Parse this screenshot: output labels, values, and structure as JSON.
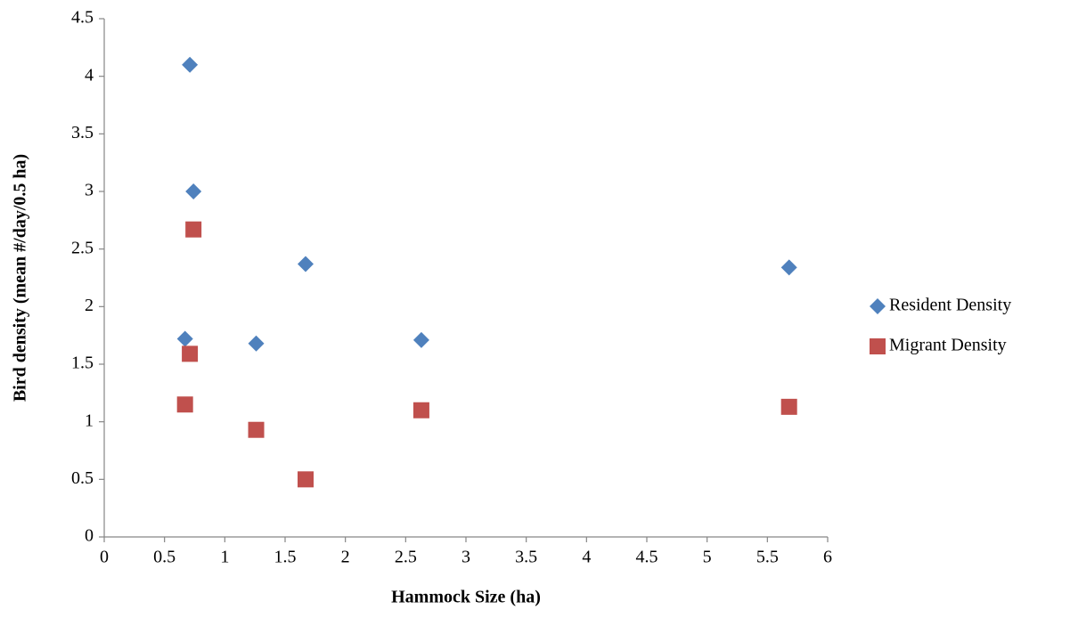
{
  "chart_data": {
    "type": "scatter",
    "x_label": "Hammock Size (ha)",
    "y_label": "Bird density (mean #/day/0.5 ha)",
    "xlim": [
      0,
      6
    ],
    "xticks": [
      0,
      0.5,
      1,
      1.5,
      2,
      2.5,
      3,
      3.5,
      4,
      4.5,
      5,
      5.5,
      6
    ],
    "ylim": [
      0,
      4.5
    ],
    "yticks": [
      0,
      0.5,
      1,
      1.5,
      2,
      2.5,
      3,
      3.5,
      4,
      4.5
    ],
    "grid": false,
    "legend": "right",
    "series": [
      {
        "name": "Resident Density",
        "color": "#4f81bd",
        "marker": "diamond",
        "x": [
          0.71,
          0.74,
          1.67,
          5.68,
          0.67,
          1.26,
          2.63
        ],
        "values": [
          4.1,
          3.0,
          2.37,
          2.34,
          1.72,
          1.68,
          1.71
        ]
      },
      {
        "name": "Migrant Density",
        "color": "#c0504d",
        "marker": "square",
        "x": [
          0.74,
          0.71,
          0.67,
          1.26,
          1.67,
          2.63,
          5.68
        ],
        "values": [
          2.67,
          1.59,
          1.15,
          0.93,
          0.5,
          1.1,
          1.13
        ]
      }
    ]
  }
}
